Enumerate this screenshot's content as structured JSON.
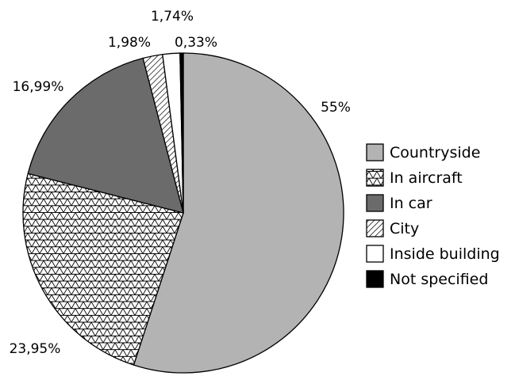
{
  "chart_data": {
    "type": "pie",
    "title": "",
    "legend_position": "right",
    "start_angle_deg": 0,
    "direction": "clockwise",
    "slices": [
      {
        "name": "Countryside",
        "value": 55,
        "label": "55%",
        "fill": "#b3b3b3",
        "pattern": "solid"
      },
      {
        "name": "In aircraft",
        "value": 23.95,
        "label": "23,95%",
        "fill": "#ffffff",
        "pattern": "triangle-hatch"
      },
      {
        "name": "In car",
        "value": 16.99,
        "label": "16,99%",
        "fill": "#6b6b6b",
        "pattern": "solid"
      },
      {
        "name": "City",
        "value": 1.98,
        "label": "1,98%",
        "fill": "#ffffff",
        "pattern": "diagonal-lines"
      },
      {
        "name": "Inside building",
        "value": 1.74,
        "label": "1,74%",
        "fill": "#ffffff",
        "pattern": "solid"
      },
      {
        "name": "Not specified",
        "value": 0.33,
        "label": "0,33%",
        "fill": "#000000",
        "pattern": "solid"
      }
    ]
  }
}
